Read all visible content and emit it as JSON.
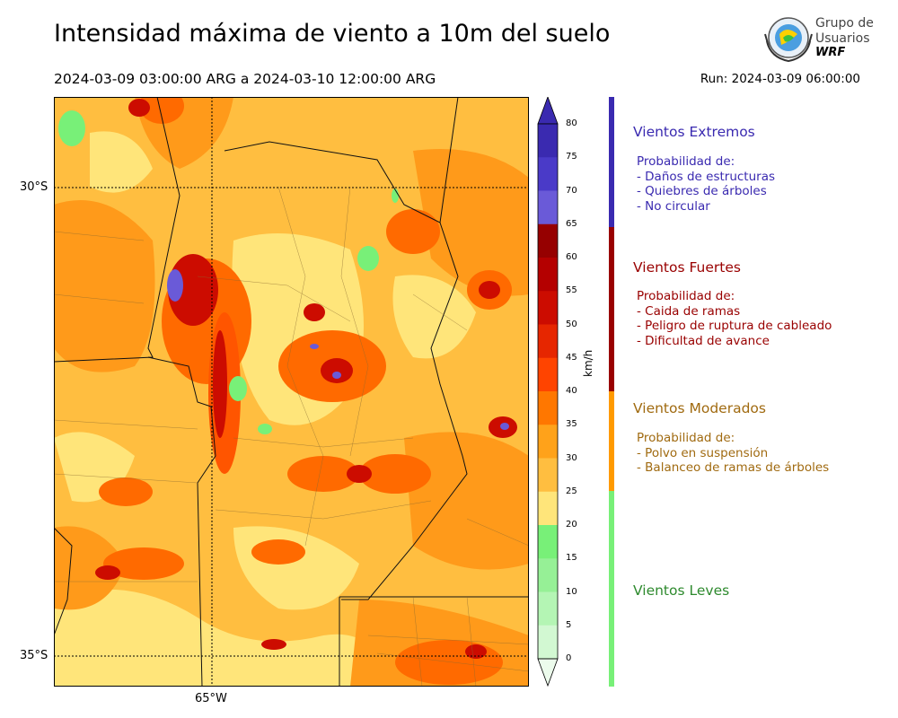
{
  "header": {
    "title": "Intensidad máxima de viento a 10m del suelo",
    "period": "2024-03-09 03:00:00 ARG  a  2024-03-10 12:00:00 ARG",
    "run": "Run: 2024-03-09 06:00:00"
  },
  "logo": {
    "line1": "Grupo de",
    "line2": "Usuarios",
    "line3": "WRF"
  },
  "map": {
    "lat_labels": [
      "30°S",
      "35°S"
    ],
    "lon_labels": [
      "65°W"
    ]
  },
  "colorbar": {
    "unit": "km/h",
    "ticks": [
      "80",
      "75",
      "70",
      "65",
      "60",
      "55",
      "50",
      "45",
      "40",
      "35",
      "30",
      "25",
      "20",
      "15",
      "10",
      "5",
      "0"
    ],
    "colors": [
      "#3a2ab0",
      "#4a3ac8",
      "#6a5ad8",
      "#960000",
      "#b40000",
      "#cc0c00",
      "#e62600",
      "#ff4400",
      "#ff7700",
      "#ffa21a",
      "#ffbe40",
      "#ffe57a",
      "#78f078",
      "#96f096",
      "#b4f5b4",
      "#d2f8d2",
      "#ecfbec"
    ]
  },
  "categories": [
    {
      "title": "Vientos Extremos",
      "color": "#3a2ab0",
      "desc": [
        "Probabilidad de:",
        "- Daños de estructuras",
        "- Quiebres de árboles",
        "- No circular"
      ]
    },
    {
      "title": "Vientos Fuertes",
      "color": "#990000",
      "desc": [
        "Probabilidad de:",
        "- Caida de ramas",
        "- Peligro de ruptura de cableado",
        "- Dificultad de avance"
      ]
    },
    {
      "title": "Vientos Moderados",
      "color": "#a06a10",
      "band_color": "#ff9a00",
      "desc": [
        "Probabilidad de:",
        "- Polvo en suspensión",
        "- Balanceo de ramas de árboles"
      ]
    },
    {
      "title": "Vientos Leves",
      "color": "#2e8a2e",
      "band_color": "#78f078",
      "desc": []
    }
  ]
}
